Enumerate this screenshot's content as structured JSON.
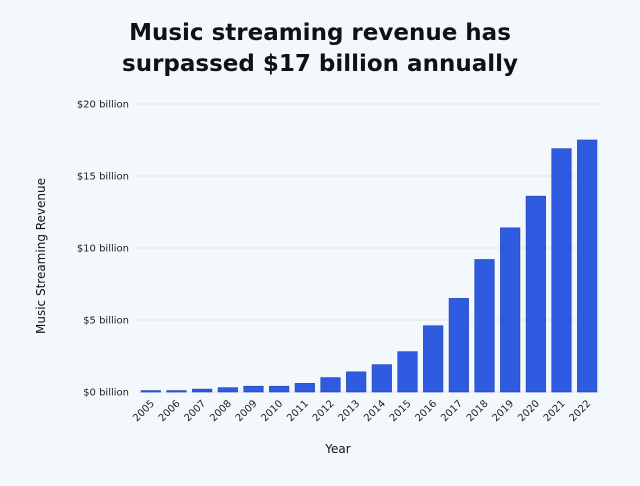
{
  "header": {
    "title_line1": "Music streaming revenue has",
    "title_line2": "surpassed $17 billion annually"
  },
  "colors": {
    "background": "#f3f8fc",
    "bar": "#2f5be0",
    "bar_stroke": "#1c3fb3",
    "grid": "#d9dde3"
  },
  "chart_data": {
    "type": "bar",
    "title": "Music streaming revenue has surpassed $17 billion annually",
    "xlabel": "Year",
    "ylabel": "Music Streaming Revenue",
    "categories": [
      "2005",
      "2006",
      "2007",
      "2008",
      "2009",
      "2010",
      "2011",
      "2012",
      "2013",
      "2014",
      "2015",
      "2016",
      "2017",
      "2018",
      "2019",
      "2020",
      "2021",
      "2022"
    ],
    "values": [
      0.1,
      0.1,
      0.2,
      0.3,
      0.4,
      0.4,
      0.6,
      1.0,
      1.4,
      1.9,
      2.8,
      4.6,
      6.5,
      9.2,
      11.4,
      13.6,
      16.9,
      17.5
    ],
    "ylim": [
      0,
      20
    ],
    "yticks": [
      {
        "value": 0,
        "label": "$0 billion"
      },
      {
        "value": 5,
        "label": "$5 billion"
      },
      {
        "value": 10,
        "label": "$10 billion"
      },
      {
        "value": 15,
        "label": "$15 billion"
      },
      {
        "value": 20,
        "label": "$20 billion"
      }
    ],
    "grid": true,
    "legend": "none"
  }
}
